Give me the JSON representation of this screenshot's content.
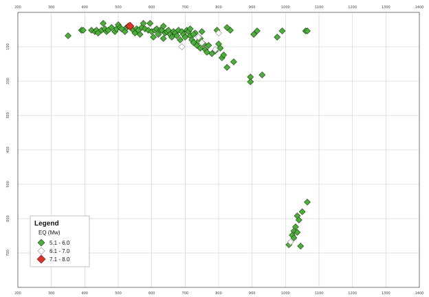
{
  "chart_data": {
    "type": "scatter",
    "xlim": [
      200,
      1400
    ],
    "ylim": [
      0,
      800
    ],
    "x_ticks": [
      200,
      300,
      400,
      500,
      600,
      700,
      800,
      900,
      1000,
      1100,
      1200,
      1300,
      1400
    ],
    "y_ticks": [
      100,
      200,
      300,
      400,
      500,
      600,
      700
    ],
    "x_tick_labels": [
      "200",
      "300",
      "400",
      "500",
      "600",
      "700",
      "800",
      "900",
      "1000",
      "1100",
      "1200",
      "1300",
      "1400"
    ],
    "y_tick_labels": [
      "100",
      "200",
      "300",
      "400",
      "500",
      "600",
      "700"
    ],
    "grid": true,
    "legend_position": "bottom-left",
    "legend": {
      "title": "Legend",
      "subtitle": "EQ (Mw)",
      "entries": [
        "5.1 - 6.0",
        "6.1 - 7.0",
        "7.1 - 8.0"
      ]
    },
    "series": [
      {
        "name": "5.1 - 6.0",
        "marker": "diamond",
        "color": "#4caf3c",
        "stroke": "#1f3d12",
        "points": [
          [
            350,
            68
          ],
          [
            390,
            52
          ],
          [
            395,
            52
          ],
          [
            420,
            52
          ],
          [
            430,
            56
          ],
          [
            435,
            52
          ],
          [
            440,
            60
          ],
          [
            450,
            52
          ],
          [
            455,
            32
          ],
          [
            460,
            48
          ],
          [
            465,
            56
          ],
          [
            470,
            52
          ],
          [
            480,
            44
          ],
          [
            490,
            56
          ],
          [
            495,
            48
          ],
          [
            500,
            36
          ],
          [
            505,
            44
          ],
          [
            510,
            48
          ],
          [
            520,
            56
          ],
          [
            525,
            44
          ],
          [
            530,
            40
          ],
          [
            545,
            52
          ],
          [
            550,
            60
          ],
          [
            555,
            48
          ],
          [
            560,
            52
          ],
          [
            565,
            64
          ],
          [
            570,
            44
          ],
          [
            575,
            32
          ],
          [
            580,
            48
          ],
          [
            590,
            52
          ],
          [
            595,
            32
          ],
          [
            600,
            56
          ],
          [
            605,
            72
          ],
          [
            610,
            52
          ],
          [
            615,
            48
          ],
          [
            620,
            64
          ],
          [
            625,
            52
          ],
          [
            630,
            52
          ],
          [
            635,
            76
          ],
          [
            640,
            60
          ],
          [
            645,
            56
          ],
          [
            650,
            52
          ],
          [
            655,
            64
          ],
          [
            660,
            72
          ],
          [
            665,
            56
          ],
          [
            670,
            60
          ],
          [
            675,
            68
          ],
          [
            680,
            52
          ],
          [
            685,
            80
          ],
          [
            690,
            56
          ],
          [
            695,
            64
          ],
          [
            700,
            72
          ],
          [
            705,
            52
          ],
          [
            710,
            56
          ],
          [
            715,
            68
          ],
          [
            720,
            80
          ],
          [
            725,
            88
          ],
          [
            730,
            60
          ],
          [
            735,
            96
          ],
          [
            740,
            84
          ],
          [
            745,
            76
          ],
          [
            750,
            56
          ],
          [
            755,
            92
          ],
          [
            760,
            108
          ],
          [
            765,
            116
          ],
          [
            770,
            96
          ],
          [
            780,
            120
          ],
          [
            790,
            112
          ],
          [
            795,
            52
          ],
          [
            800,
            92
          ],
          [
            805,
            104
          ],
          [
            810,
            132
          ],
          [
            815,
            124
          ],
          [
            825,
            44
          ],
          [
            835,
            52
          ],
          [
            845,
            144
          ],
          [
            825,
            160
          ],
          [
            895,
            188
          ],
          [
            895,
            202
          ],
          [
            930,
            182
          ],
          [
            905,
            64
          ],
          [
            915,
            54
          ],
          [
            975,
            72
          ],
          [
            990,
            54
          ],
          [
            1060,
            54
          ],
          [
            1065,
            54
          ],
          [
            1050,
            580
          ],
          [
            1065,
            552
          ],
          [
            1035,
            592
          ],
          [
            1040,
            604
          ],
          [
            1030,
            624
          ],
          [
            1025,
            636
          ],
          [
            1035,
            640
          ],
          [
            1020,
            648
          ],
          [
            1025,
            656
          ],
          [
            1010,
            676
          ],
          [
            1045,
            680
          ],
          [
            715,
            48
          ],
          [
            725,
            64
          ],
          [
            745,
            104
          ],
          [
            635,
            40
          ]
        ]
      },
      {
        "name": "6.1 - 7.0",
        "marker": "diamond",
        "color": "#ffffff",
        "stroke": "#888888",
        "points": [
          [
            690,
            100
          ],
          [
            750,
            88
          ],
          [
            800,
            60
          ],
          [
            790,
            108
          ],
          [
            740,
            72
          ],
          [
            1015,
            668
          ]
        ]
      },
      {
        "name": "7.1 - 8.0",
        "marker": "diamond",
        "color": "#d9332a",
        "stroke": "#7a1510",
        "points": [
          [
            535,
            40
          ]
        ]
      }
    ]
  }
}
